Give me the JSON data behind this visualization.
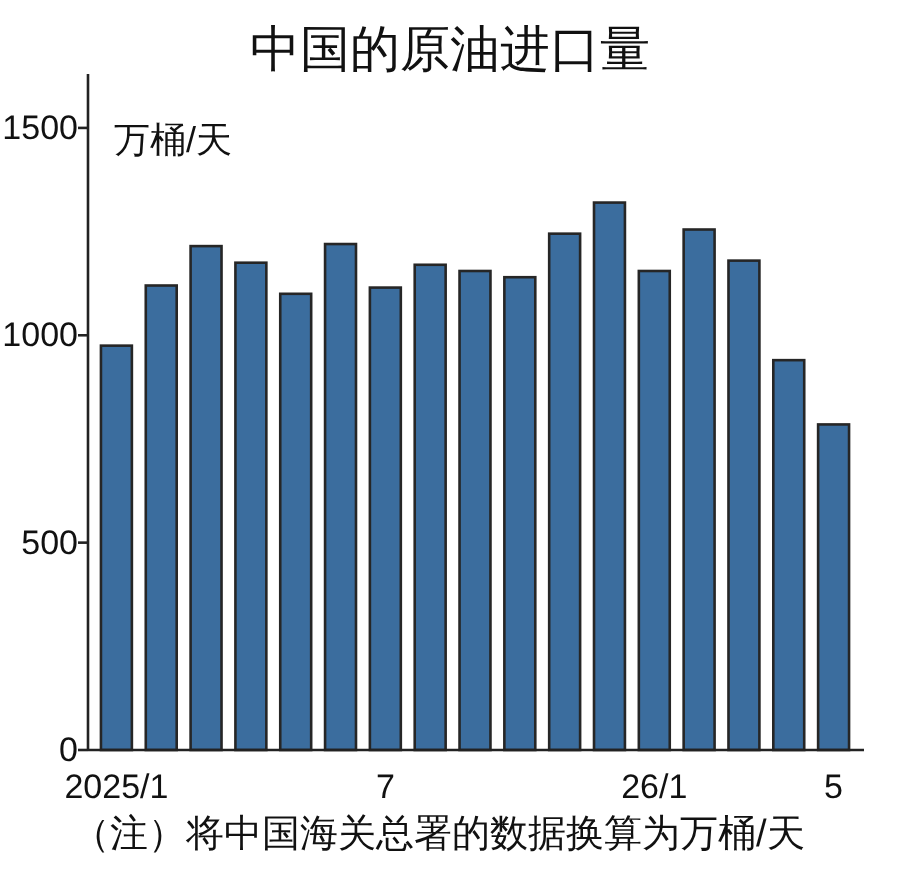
{
  "chart_data": {
    "type": "bar",
    "title": "中国的原油进口量",
    "ylabel": "万桶/天",
    "annotations": [
      "（注）将中国海关总署的数据换算为万桶/天"
    ],
    "categories": [
      "2025/1",
      null,
      null,
      null,
      null,
      null,
      "7",
      null,
      null,
      null,
      null,
      null,
      "26/1",
      null,
      null,
      null,
      "5"
    ],
    "values": [
      975,
      1120,
      1215,
      1175,
      1100,
      1220,
      1115,
      1170,
      1155,
      1140,
      1245,
      1320,
      1155,
      1255,
      1180,
      940,
      785
    ],
    "color": "#3b6d9e",
    "ylim": [
      0,
      1630
    ],
    "yticks": [
      0,
      500,
      1000,
      1500
    ]
  }
}
